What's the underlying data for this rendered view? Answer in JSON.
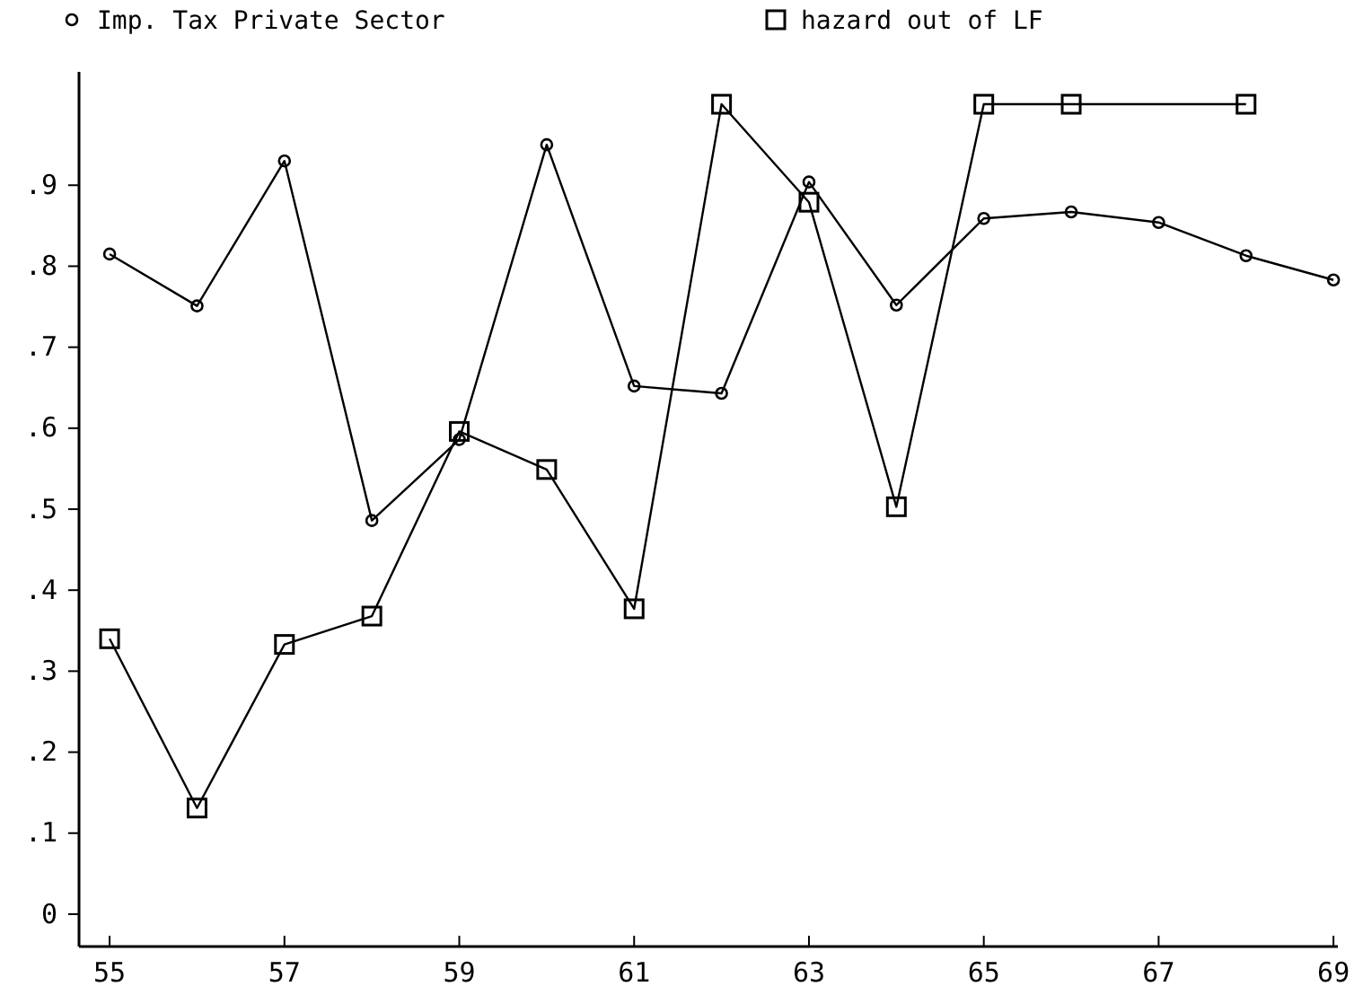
{
  "chart_data": {
    "type": "line",
    "legend": "top left",
    "grid": false,
    "xlim": [
      54.65,
      69.05
    ],
    "xticks": [
      55,
      57,
      59,
      61,
      63,
      65,
      67,
      69
    ],
    "ylim": [
      -0.04,
      1.04
    ],
    "yticks": [
      0,
      {
        "value": 0.1,
        "label": ".1"
      },
      {
        "value": 0.2,
        "label": ".2"
      },
      {
        "value": 0.3,
        "label": ".3"
      },
      {
        "value": 0.4,
        "label": ".4"
      },
      {
        "value": 0.5,
        "label": ".5"
      },
      {
        "value": 0.6,
        "label": ".6"
      },
      {
        "value": 0.7,
        "label": ".7"
      },
      {
        "value": 0.8,
        "label": ".8"
      },
      {
        "value": 0.9,
        "label": ".9"
      }
    ],
    "series": [
      {
        "name": "Imp. Tax Private Sector",
        "color": "#000000",
        "marker": "circle",
        "x": [
          55,
          56,
          57,
          58,
          59,
          60,
          61,
          62,
          63,
          64,
          65,
          66,
          67,
          68,
          69
        ],
        "values": [
          0.815,
          0.751,
          0.93,
          0.486,
          0.586,
          0.95,
          0.652,
          0.643,
          0.904,
          0.752,
          0.859,
          0.867,
          0.854,
          0.813,
          0.783
        ]
      },
      {
        "name": "hazard out of LF",
        "color": "#000000",
        "marker": "square",
        "x": [
          55,
          56,
          57,
          58,
          59,
          60,
          61,
          62,
          63,
          64,
          65,
          66,
          68
        ],
        "values": [
          0.34,
          0.131,
          0.333,
          0.368,
          0.596,
          0.549,
          0.377,
          1.0,
          0.879,
          0.503,
          1.0,
          1.0,
          1.0
        ]
      }
    ]
  }
}
